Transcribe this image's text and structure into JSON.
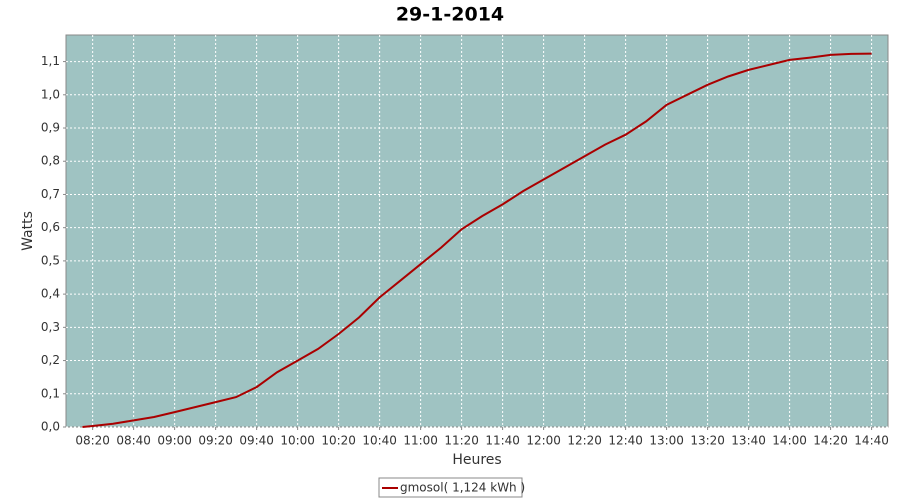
{
  "chart_data": {
    "type": "line",
    "title": "29-1-2014",
    "x_label": "Heures",
    "y_label": "Watts",
    "x": [
      "08:15",
      "08:20",
      "08:30",
      "08:40",
      "08:50",
      "09:00",
      "09:10",
      "09:20",
      "09:30",
      "09:40",
      "09:50",
      "10:00",
      "10:10",
      "10:20",
      "10:30",
      "10:40",
      "10:50",
      "11:00",
      "11:10",
      "11:20",
      "11:30",
      "11:40",
      "11:50",
      "12:00",
      "12:10",
      "12:20",
      "12:30",
      "12:40",
      "12:50",
      "13:00",
      "13:10",
      "13:20",
      "13:30",
      "13:40",
      "13:50",
      "14:00",
      "14:10",
      "14:20",
      "14:30",
      "14:40"
    ],
    "series": [
      {
        "name": "gmosol( 1,124 kWh )",
        "color": "#aa0000",
        "values": [
          0.0,
          0.003,
          0.01,
          0.02,
          0.03,
          0.045,
          0.06,
          0.075,
          0.09,
          0.12,
          0.165,
          0.2,
          0.235,
          0.28,
          0.33,
          0.39,
          0.44,
          0.49,
          0.54,
          0.595,
          0.635,
          0.67,
          0.71,
          0.745,
          0.78,
          0.815,
          0.85,
          0.88,
          0.92,
          0.97,
          1.0,
          1.03,
          1.055,
          1.075,
          1.09,
          1.105,
          1.112,
          1.12,
          1.123,
          1.124
        ]
      }
    ],
    "xlim": [
      "08:07",
      "14:48"
    ],
    "xticks": [
      "08:20",
      "08:40",
      "09:00",
      "09:20",
      "09:40",
      "10:00",
      "10:20",
      "10:40",
      "11:00",
      "11:20",
      "11:40",
      "12:00",
      "12:20",
      "12:40",
      "13:00",
      "13:20",
      "13:40",
      "14:00",
      "14:20",
      "14:40"
    ],
    "ylim": [
      0,
      1.18
    ],
    "yticks": [
      {
        "value": 0,
        "label": "0,0"
      },
      {
        "value": 0.1,
        "label": "0,1"
      },
      {
        "value": 0.2,
        "label": "0,2"
      },
      {
        "value": 0.3,
        "label": "0,3"
      },
      {
        "value": 0.4,
        "label": "0,4"
      },
      {
        "value": 0.5,
        "label": "0,5"
      },
      {
        "value": 0.6,
        "label": "0,6"
      },
      {
        "value": 0.7,
        "label": "0,7"
      },
      {
        "value": 0.8,
        "label": "0,8"
      },
      {
        "value": 0.9,
        "label": "0,9"
      },
      {
        "value": 1.0,
        "label": "1,0"
      },
      {
        "value": 1.1,
        "label": "1,1"
      }
    ],
    "grid": true
  }
}
